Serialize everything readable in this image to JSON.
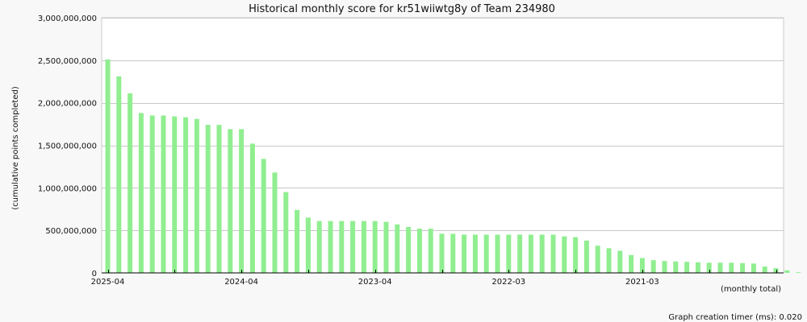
{
  "chart_data": {
    "type": "bar",
    "title": "Historical monthly score for kr51wiiwtg8y of Team 234980",
    "ylabel": "(cumulative points completed)",
    "xlabel": "(monthly total)",
    "ylim": [
      0,
      3000000000
    ],
    "y_ticks": [
      "0",
      "500,000,000",
      "1,000,000,000",
      "1,500,000,000",
      "2,000,000,000",
      "2,500,000,000",
      "3,000,000,000"
    ],
    "y_tick_values": [
      0,
      500000000,
      1000000000,
      1500000000,
      2000000000,
      2500000000,
      3000000000
    ],
    "x_tick_labels": [
      {
        "label": "2025-04",
        "index": 0
      },
      {
        "label": "2024-04",
        "index": 12
      },
      {
        "label": "2023-04",
        "index": 24
      },
      {
        "label": "2022-03",
        "index": 36
      },
      {
        "label": "2021-03",
        "index": 48
      }
    ],
    "bar_color": "#90ee90",
    "grid": true,
    "values": [
      2510000000,
      2310000000,
      2110000000,
      1880000000,
      1850000000,
      1850000000,
      1840000000,
      1830000000,
      1810000000,
      1740000000,
      1740000000,
      1690000000,
      1690000000,
      1520000000,
      1340000000,
      1180000000,
      950000000,
      740000000,
      650000000,
      610000000,
      610000000,
      610000000,
      610000000,
      610000000,
      610000000,
      600000000,
      570000000,
      540000000,
      520000000,
      520000000,
      460000000,
      460000000,
      450000000,
      450000000,
      450000000,
      450000000,
      450000000,
      450000000,
      450000000,
      450000000,
      450000000,
      430000000,
      420000000,
      380000000,
      320000000,
      290000000,
      260000000,
      210000000,
      175000000,
      150000000,
      140000000,
      135000000,
      130000000,
      125000000,
      120000000,
      120000000,
      120000000,
      115000000,
      110000000,
      75000000,
      55000000,
      30000000,
      8000000
    ]
  },
  "footer": {
    "timer": "Graph creation timer (ms): 0.020"
  }
}
